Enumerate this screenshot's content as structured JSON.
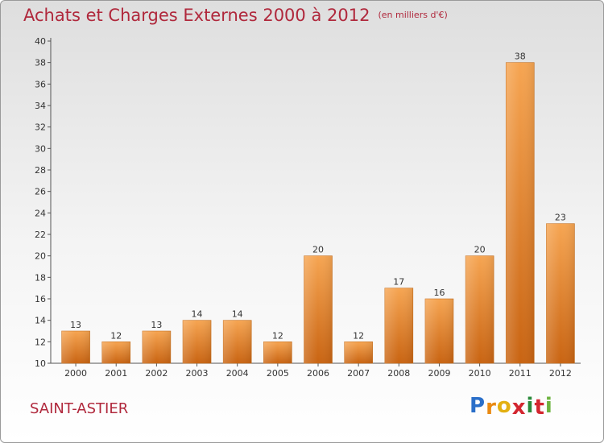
{
  "header": {
    "title": "Achats et Charges Externes 2000 à 2012",
    "unit": "(en milliers d'€)"
  },
  "footer": {
    "city": "SAINT-ASTIER",
    "logo": {
      "letters": [
        "P",
        "r",
        "o",
        "x",
        "i",
        "t",
        "i"
      ],
      "colors": [
        "#2a6fc9",
        "#e98a12",
        "#e3b012",
        "#d3262f",
        "#2a8a3a",
        "#d3262f",
        "#6db33f"
      ]
    }
  },
  "colors": {
    "bar_top": "#f6a552",
    "bar_bottom": "#c96412",
    "title": "#b0283c"
  },
  "chart_data": {
    "type": "bar",
    "title": "Achats et Charges Externes 2000 à 2012",
    "xlabel": "",
    "ylabel": "",
    "categories": [
      "2000",
      "2001",
      "2002",
      "2003",
      "2004",
      "2005",
      "2006",
      "2007",
      "2008",
      "2009",
      "2010",
      "2011",
      "2012"
    ],
    "values": [
      13,
      12,
      13,
      14,
      14,
      12,
      20,
      12,
      17,
      16,
      20,
      38,
      23
    ],
    "ylim": [
      10,
      40
    ],
    "yticks": [
      10,
      12,
      14,
      16,
      18,
      20,
      22,
      24,
      26,
      28,
      30,
      32,
      34,
      36,
      38,
      40
    ],
    "grid": false,
    "legend": "none"
  }
}
